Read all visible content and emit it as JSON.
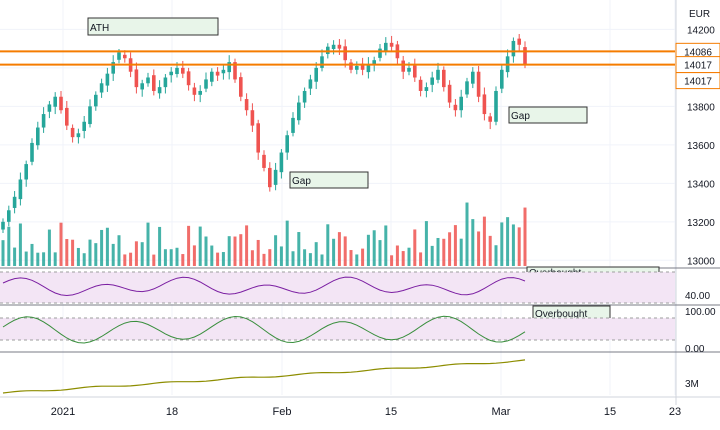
{
  "chart_data": {
    "type": "candlestick",
    "currency": "EUR",
    "price_axis": {
      "ticks": [
        13000,
        13200,
        13400,
        13600,
        13800,
        14000,
        14200
      ],
      "range": [
        12960,
        14280
      ]
    },
    "x_axis": {
      "labels": [
        "2021",
        "18",
        "Feb",
        "15",
        "Mar",
        "15",
        "23"
      ]
    },
    "horizontal_levels": [
      {
        "value": 14086,
        "label": "14086",
        "color": "#f57c00"
      },
      {
        "value": 14017,
        "label": "14017",
        "color": "#f57c00"
      }
    ],
    "last_price": {
      "value": 14017,
      "label": "14017",
      "color": "#ef5350"
    },
    "annotations": [
      {
        "text": "ATH",
        "pane": "price"
      },
      {
        "text": "Gap",
        "pane": "price"
      },
      {
        "text": "Gap",
        "pane": "price"
      },
      {
        "text": "Overbought",
        "pane": "oscillator_1"
      },
      {
        "text": "Overbought",
        "pane": "oscillator_2"
      }
    ],
    "closes": [
      13200,
      13260,
      13330,
      13420,
      13500,
      13610,
      13690,
      13760,
      13810,
      13850,
      13780,
      13700,
      13640,
      13660,
      13720,
      13800,
      13860,
      13920,
      13970,
      14030,
      14080,
      14050,
      13980,
      13900,
      13920,
      13950,
      13880,
      13900,
      13950,
      13980,
      14000,
      13970,
      13910,
      13860,
      13880,
      13940,
      13980,
      13960,
      13990,
      14030,
      13940,
      13850,
      13780,
      13700,
      13560,
      13480,
      13380,
      13470,
      13560,
      13650,
      13740,
      13820,
      13880,
      13940,
      14000,
      14060,
      14110,
      14120,
      14100,
      14040,
      13990,
      14010,
      13990,
      14020,
      14040,
      14100,
      14130,
      14110,
      14050,
      13980,
      14000,
      13950,
      13880,
      13900,
      13950,
      13990,
      13900,
      13820,
      13780,
      13850,
      13930,
      13980,
      13850,
      13760,
      13720,
      13880,
      13990,
      14060,
      14140,
      14120,
      14017
    ],
    "volume_axis": {
      "ticks": []
    },
    "oscillator_1": {
      "ticks": [
        {
          "value": 40,
          "label": "40.00"
        }
      ],
      "band": [
        30,
        70
      ]
    },
    "oscillator_2": {
      "ticks": [
        {
          "value": 100,
          "label": "100.00"
        },
        {
          "value": 0,
          "label": "0.00"
        }
      ],
      "band": [
        20,
        80
      ]
    },
    "cumulative_volume": {
      "ticks": [
        {
          "value": 3,
          "label": "3M"
        }
      ]
    }
  },
  "colors": {
    "up": "#26a69a",
    "down": "#ef5350",
    "level": "#f57c00",
    "osc1_line": "#7b1fa2",
    "osc2_line": "#388e3c",
    "cum_line": "#8d8d00",
    "band_fill": "#f3e5f5",
    "annotation_bg": "#e8f5e9",
    "annotation_border": "#333333",
    "grid": "#f0f3fa",
    "axis_text": "#131722"
  }
}
